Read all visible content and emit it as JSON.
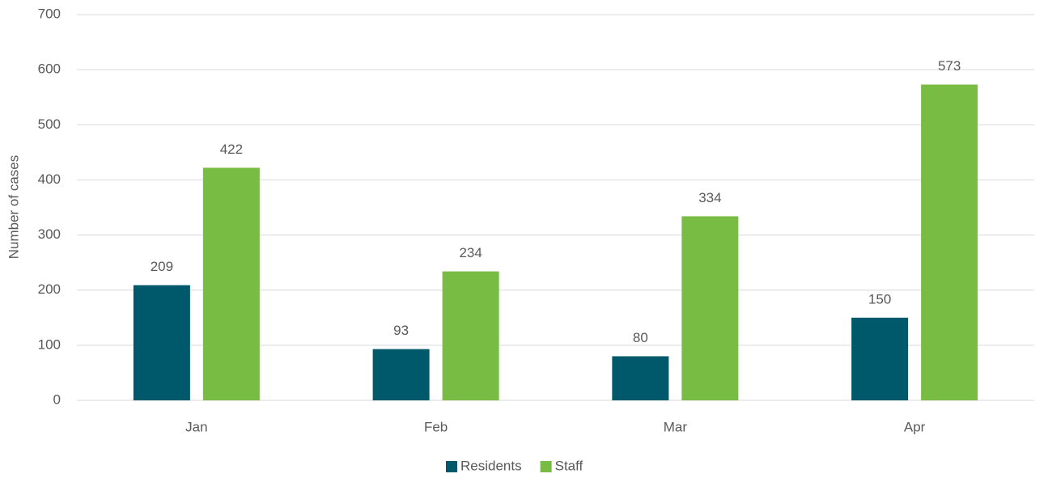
{
  "chart_data": {
    "type": "bar",
    "y_label": "Number of cases",
    "categories": [
      "Jan",
      "Feb",
      "Mar",
      "Apr"
    ],
    "series": [
      {
        "name": "Residents",
        "color": "#00586b",
        "values": [
          209,
          93,
          80,
          150
        ]
      },
      {
        "name": "Staff",
        "color": "#78bc43",
        "values": [
          422,
          234,
          334,
          573
        ]
      }
    ],
    "ylim": [
      0,
      700
    ],
    "yticks": [
      0,
      100,
      200,
      300,
      400,
      500,
      600,
      700
    ],
    "grid": true,
    "legend": "bottom",
    "data_labels": true
  }
}
